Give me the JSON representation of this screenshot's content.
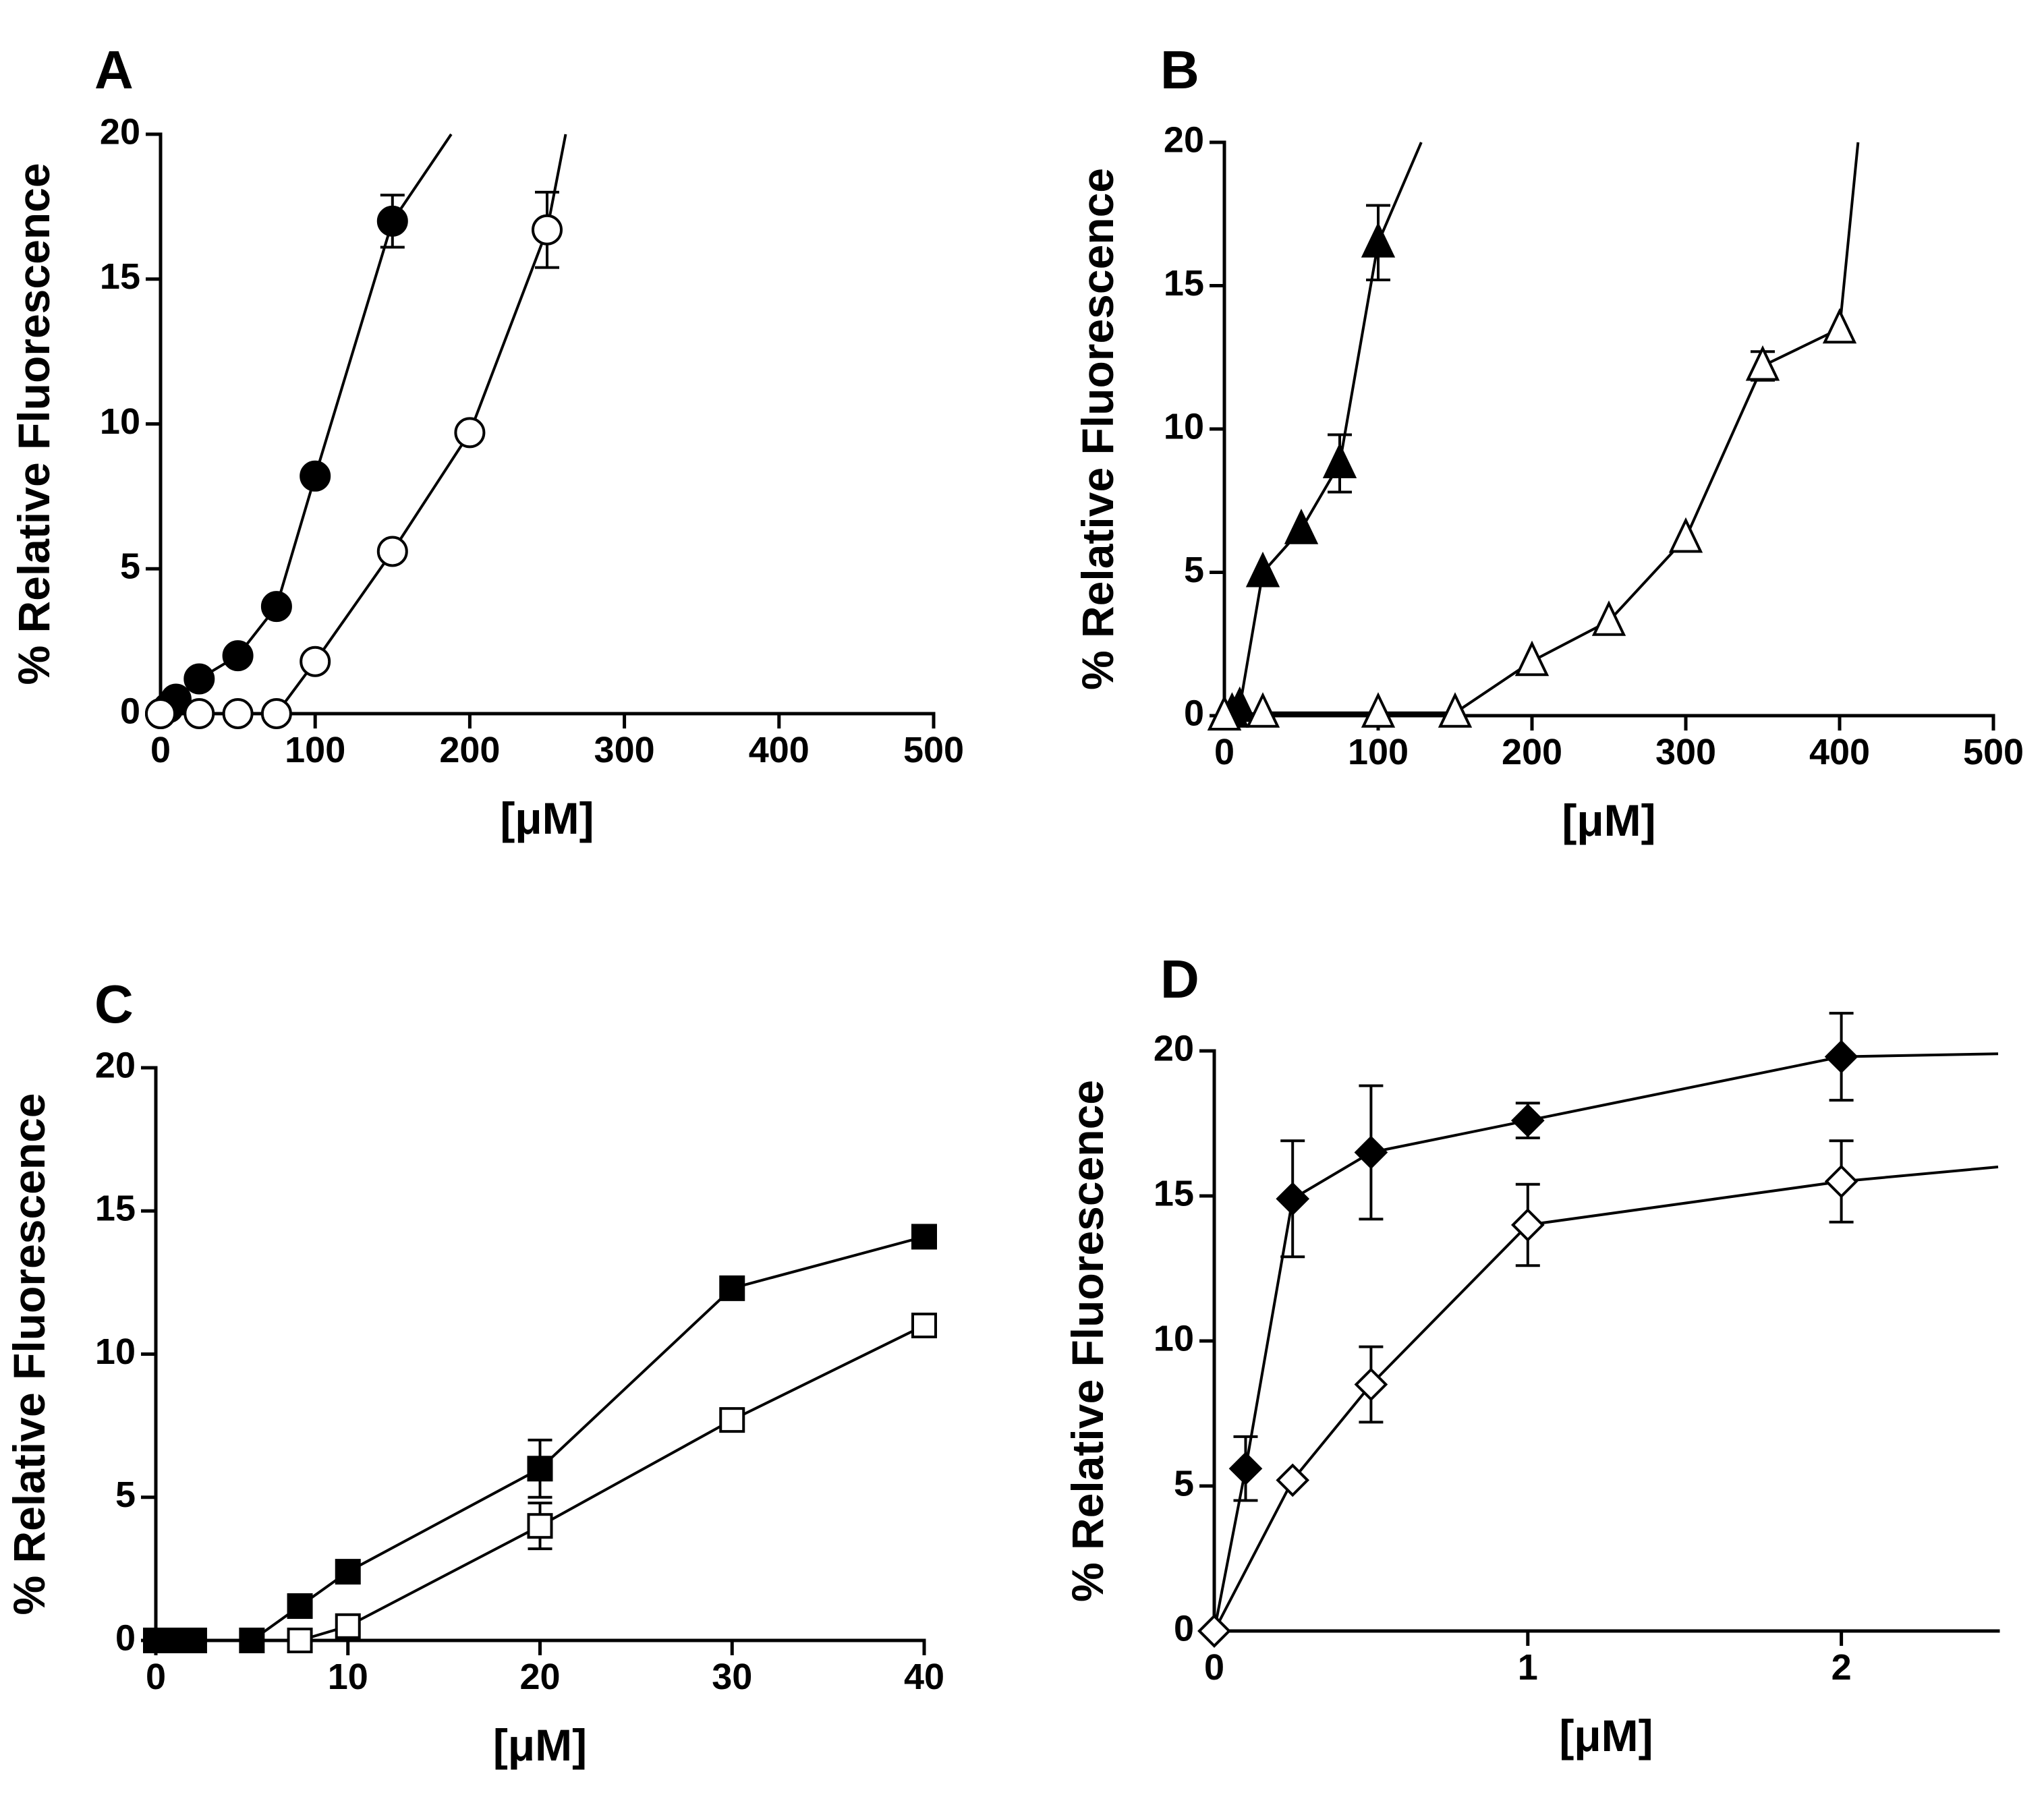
{
  "chart_data": [
    {
      "type": "line",
      "panel_label": "A",
      "xlabel": "[μM]",
      "ylabel": "% Relative Fluorescence",
      "xlim": [
        0,
        500
      ],
      "ylim": [
        0,
        20
      ],
      "x_ticks": [
        0,
        100,
        200,
        300,
        400,
        500
      ],
      "y_ticks": [
        0,
        5,
        10,
        15,
        20
      ],
      "series": [
        {
          "marker": "circle",
          "filled": true,
          "points": [
            {
              "x": 0,
              "y": 0
            },
            {
              "x": 5,
              "y": 0.2
            },
            {
              "x": 10,
              "y": 0.5
            },
            {
              "x": 25,
              "y": 1.2
            },
            {
              "x": 50,
              "y": 2.0
            },
            {
              "x": 75,
              "y": 3.7
            },
            {
              "x": 100,
              "y": 8.2
            },
            {
              "x": 150,
              "y": 17.0,
              "err": 0.9
            }
          ],
          "line_to": {
            "x": 188,
            "y": 20
          }
        },
        {
          "marker": "circle",
          "filled": false,
          "points": [
            {
              "x": 0,
              "y": 0
            },
            {
              "x": 25,
              "y": 0
            },
            {
              "x": 50,
              "y": 0
            },
            {
              "x": 75,
              "y": 0
            },
            {
              "x": 100,
              "y": 1.8
            },
            {
              "x": 150,
              "y": 5.6
            },
            {
              "x": 200,
              "y": 9.7
            },
            {
              "x": 250,
              "y": 16.7,
              "err": 1.3
            }
          ],
          "line_to": {
            "x": 262,
            "y": 20
          }
        }
      ]
    },
    {
      "type": "line",
      "panel_label": "B",
      "xlabel": "[μM]",
      "ylabel": "% Relative Fluorescence",
      "xlim": [
        0,
        500
      ],
      "ylim": [
        0,
        20
      ],
      "x_ticks": [
        0,
        100,
        200,
        300,
        400,
        500
      ],
      "y_ticks": [
        0,
        5,
        10,
        15,
        20
      ],
      "series": [
        {
          "marker": "triangle",
          "filled": true,
          "points": [
            {
              "x": 0,
              "y": 0
            },
            {
              "x": 5,
              "y": 0.1
            },
            {
              "x": 10,
              "y": 0.3
            },
            {
              "x": 25,
              "y": 5.0
            },
            {
              "x": 50,
              "y": 6.5
            },
            {
              "x": 75,
              "y": 8.8,
              "err": 1.0
            },
            {
              "x": 100,
              "y": 16.5,
              "err": 1.3
            }
          ],
          "line_to": {
            "x": 128,
            "y": 20
          }
        },
        {
          "marker": "triangle",
          "filled": false,
          "points": [
            {
              "x": 0,
              "y": 0
            },
            {
              "x": 25,
              "y": 0.1
            },
            {
              "x": 100,
              "y": 0.1
            },
            {
              "x": 150,
              "y": 0.1
            },
            {
              "x": 200,
              "y": 1.9
            },
            {
              "x": 250,
              "y": 3.3
            },
            {
              "x": 300,
              "y": 6.2
            },
            {
              "x": 350,
              "y": 12.2,
              "err": 0.5
            },
            {
              "x": 400,
              "y": 13.5
            }
          ],
          "line_to": {
            "x": 412,
            "y": 20
          }
        }
      ]
    },
    {
      "type": "line",
      "panel_label": "C",
      "xlabel": "[μM]",
      "ylabel": "% Relative Fluorescence",
      "xlim": [
        0,
        40
      ],
      "ylim": [
        0,
        20
      ],
      "x_ticks": [
        0,
        10,
        20,
        30,
        40
      ],
      "y_ticks": [
        0,
        5,
        10,
        15,
        20
      ],
      "series": [
        {
          "marker": "square",
          "filled": true,
          "points": [
            {
              "x": 0,
              "y": 0
            },
            {
              "x": 0.5,
              "y": 0
            },
            {
              "x": 1,
              "y": 0
            },
            {
              "x": 2,
              "y": 0
            },
            {
              "x": 5,
              "y": 0
            },
            {
              "x": 7.5,
              "y": 1.2
            },
            {
              "x": 10,
              "y": 2.4
            },
            {
              "x": 20,
              "y": 6.0,
              "err": 1.0
            },
            {
              "x": 30,
              "y": 12.3
            },
            {
              "x": 40,
              "y": 14.1
            }
          ]
        },
        {
          "marker": "square",
          "filled": false,
          "points": [
            {
              "x": 7.5,
              "y": 0
            },
            {
              "x": 10,
              "y": 0.5
            },
            {
              "x": 20,
              "y": 4.0,
              "err": 0.8
            },
            {
              "x": 30,
              "y": 7.7
            },
            {
              "x": 40,
              "y": 11.0
            }
          ]
        }
      ]
    },
    {
      "type": "line",
      "panel_label": "D",
      "xlabel": "[μM]",
      "ylabel": "% Relative Fluorescence",
      "xlim": [
        0,
        2.5
      ],
      "ylim": [
        0,
        20
      ],
      "x_ticks": [
        0,
        1,
        2
      ],
      "y_ticks": [
        0,
        5,
        10,
        15,
        20
      ],
      "series": [
        {
          "marker": "diamond",
          "filled": true,
          "points": [
            {
              "x": 0,
              "y": 0
            },
            {
              "x": 0.1,
              "y": 5.6,
              "err": 1.1
            },
            {
              "x": 0.25,
              "y": 14.9,
              "err": 2.0
            },
            {
              "x": 0.5,
              "y": 16.5,
              "err": 2.3
            },
            {
              "x": 1,
              "y": 17.6,
              "err": 0.6
            },
            {
              "x": 2,
              "y": 19.8,
              "err": 1.5
            }
          ],
          "line_to": {
            "x": 2.5,
            "y": 19.9
          }
        },
        {
          "marker": "diamond",
          "filled": false,
          "points": [
            {
              "x": 0,
              "y": 0
            },
            {
              "x": 0.25,
              "y": 5.2
            },
            {
              "x": 0.5,
              "y": 8.5,
              "err": 1.3
            },
            {
              "x": 1,
              "y": 14.0,
              "err": 1.4
            },
            {
              "x": 2,
              "y": 15.5,
              "err": 1.4
            }
          ],
          "line_to": {
            "x": 2.5,
            "y": 16.0
          }
        }
      ]
    }
  ]
}
